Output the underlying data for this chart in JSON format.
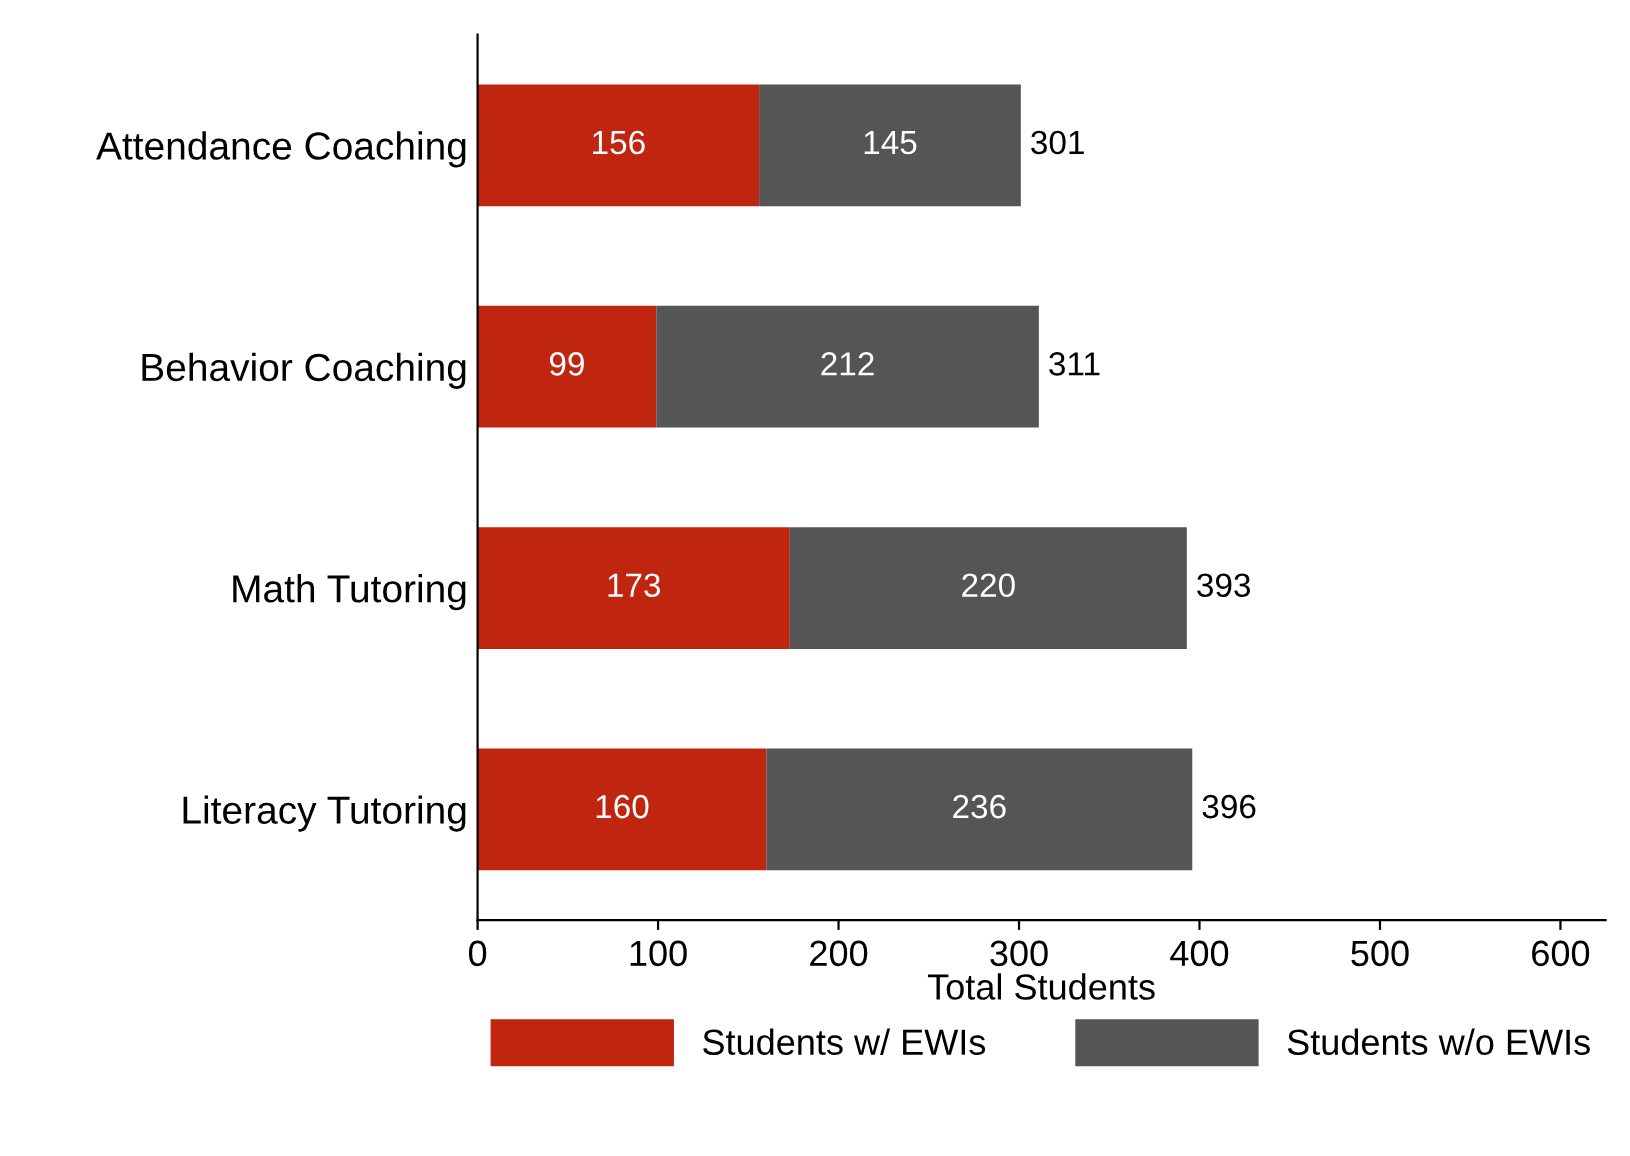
{
  "chart_data": {
    "type": "bar",
    "orientation": "horizontal",
    "stacked": true,
    "xlabel": "Total Students",
    "categories": [
      "Attendance Coaching",
      "Behavior Coaching",
      "Math Tutoring",
      "Literacy Tutoring"
    ],
    "series": [
      {
        "name": "Students w/ EWIs",
        "color": "#c0260f",
        "values": [
          156,
          99,
          173,
          160
        ]
      },
      {
        "name": "Students w/o EWIs",
        "color": "#555555",
        "values": [
          145,
          212,
          220,
          236
        ]
      }
    ],
    "xlim": [
      0,
      625
    ],
    "xticks": [
      0,
      100,
      200,
      300,
      400,
      500,
      600
    ],
    "data_labels": true,
    "totals": [
      "301",
      "311",
      "393",
      "396"
    ],
    "grid": false,
    "legend": "bottom"
  }
}
